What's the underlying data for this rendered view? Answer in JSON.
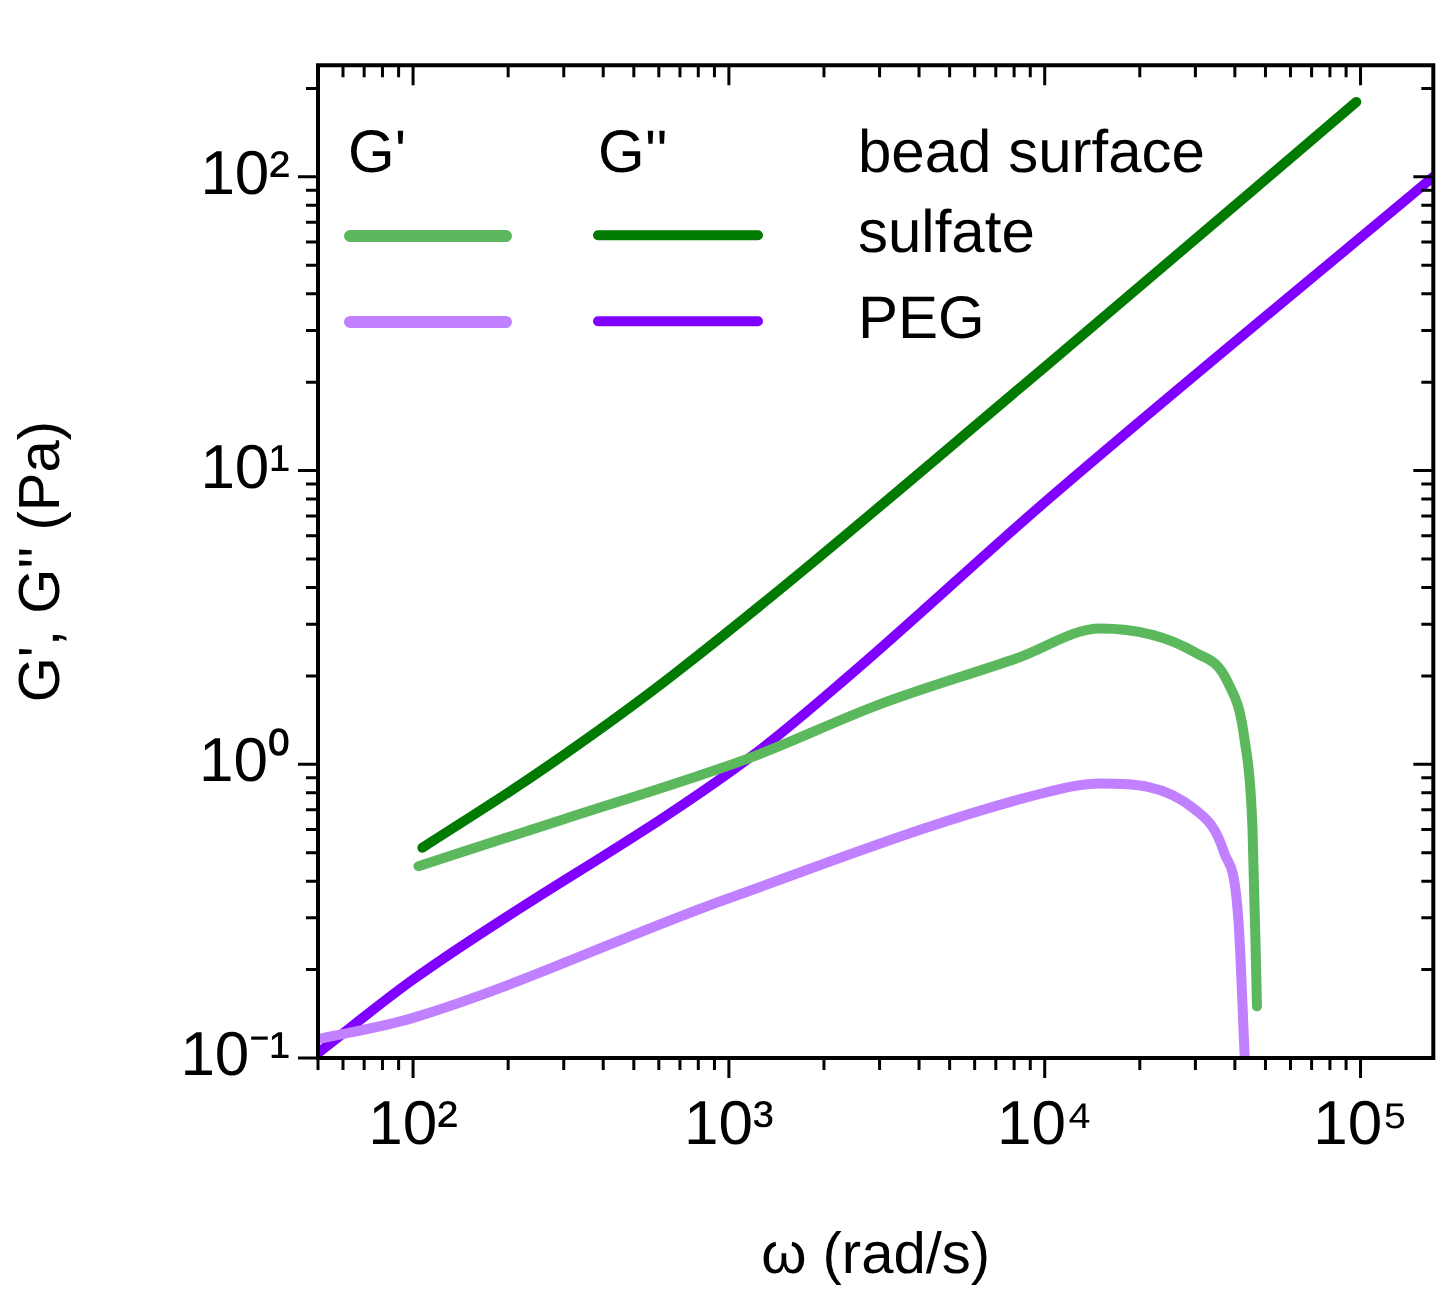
{
  "chart_data": {
    "type": "line",
    "xlabel": "ω (rad/s)",
    "ylabel": "G', G'' (Pa)",
    "log": "xy",
    "legend": "top left",
    "grid": false,
    "line_style": "solid",
    "marker": "none",
    "xlim": [
      50,
      170000
    ],
    "ylim": [
      0.1,
      240
    ],
    "xticks": [
      {
        "value": 50,
        "label": null
      },
      {
        "value": 60,
        "label": null
      },
      {
        "value": 70,
        "label": null
      },
      {
        "value": 80,
        "label": null
      },
      {
        "value": 90,
        "label": null
      },
      {
        "value": 100,
        "label": "10²"
      },
      {
        "value": 200,
        "label": null
      },
      {
        "value": 300,
        "label": null
      },
      {
        "value": 400,
        "label": null
      },
      {
        "value": 500,
        "label": null
      },
      {
        "value": 600,
        "label": null
      },
      {
        "value": 700,
        "label": null
      },
      {
        "value": 800,
        "label": null
      },
      {
        "value": 900,
        "label": null
      },
      {
        "value": 1000,
        "label": "10³"
      },
      {
        "value": 2000,
        "label": null
      },
      {
        "value": 3000,
        "label": null
      },
      {
        "value": 4000,
        "label": null
      },
      {
        "value": 5000,
        "label": null
      },
      {
        "value": 6000,
        "label": null
      },
      {
        "value": 7000,
        "label": null
      },
      {
        "value": 8000,
        "label": null
      },
      {
        "value": 9000,
        "label": null
      },
      {
        "value": 10000,
        "label": "10⁴"
      },
      {
        "value": 20000,
        "label": null
      },
      {
        "value": 30000,
        "label": null
      },
      {
        "value": 40000,
        "label": null
      },
      {
        "value": 50000,
        "label": null
      },
      {
        "value": 60000,
        "label": null
      },
      {
        "value": 70000,
        "label": null
      },
      {
        "value": 80000,
        "label": null
      },
      {
        "value": 90000,
        "label": null
      },
      {
        "value": 100000,
        "label": "10⁵"
      }
    ],
    "yticks": [
      {
        "value": 0.1,
        "label": "10⁻¹"
      },
      {
        "value": 0.2,
        "label": null
      },
      {
        "value": 0.3,
        "label": null
      },
      {
        "value": 0.4,
        "label": null
      },
      {
        "value": 0.5,
        "label": null
      },
      {
        "value": 0.6,
        "label": null
      },
      {
        "value": 0.7,
        "label": null
      },
      {
        "value": 0.8,
        "label": null
      },
      {
        "value": 0.9,
        "label": null
      },
      {
        "value": 1,
        "label": "10⁰"
      },
      {
        "value": 2,
        "label": null
      },
      {
        "value": 3,
        "label": null
      },
      {
        "value": 4,
        "label": null
      },
      {
        "value": 5,
        "label": null
      },
      {
        "value": 6,
        "label": null
      },
      {
        "value": 7,
        "label": null
      },
      {
        "value": 8,
        "label": null
      },
      {
        "value": 9,
        "label": null
      },
      {
        "value": 10,
        "label": "10¹"
      },
      {
        "value": 20,
        "label": null
      },
      {
        "value": 30,
        "label": null
      },
      {
        "value": 40,
        "label": null
      },
      {
        "value": 50,
        "label": null
      },
      {
        "value": 60,
        "label": null
      },
      {
        "value": 70,
        "label": null
      },
      {
        "value": 80,
        "label": null
      },
      {
        "value": 90,
        "label": null
      },
      {
        "value": 100,
        "label": "10²"
      },
      {
        "value": 200,
        "label": null
      }
    ],
    "annotations": [
      "G'",
      "G''",
      "bead surface"
    ],
    "series": [
      {
        "color": "#5cb85c",
        "x": [
          104,
          300,
          1160,
          3000,
          8200,
          15000,
          30000,
          38000,
          43000,
          45500,
          47000
        ],
        "values": [
          0.45,
          0.65,
          1.05,
          1.6,
          2.3,
          2.9,
          2.4,
          1.9,
          1.2,
          0.6,
          0.15
        ]
      },
      {
        "name": "sulfate",
        "color": "#007a00",
        "x": [
          107,
          250,
          660,
          10000,
          97000
        ],
        "values": [
          0.52,
          0.94,
          2.0,
          22.5,
          180
        ]
      },
      {
        "color": "#c080ff",
        "x": [
          50,
          100,
          1000,
          10000,
          15000,
          30000,
          37000,
          41000,
          43000
        ],
        "values": [
          0.116,
          0.137,
          0.35,
          0.8,
          0.86,
          0.7,
          0.5,
          0.3,
          0.1
        ]
      },
      {
        "name": "PEG",
        "color": "#8000ff",
        "x": [
          50,
          100,
          1160,
          2400,
          10000,
          170000
        ],
        "values": [
          0.104,
          0.185,
          1.05,
          2.0,
          7.8,
          100
        ]
      }
    ]
  }
}
